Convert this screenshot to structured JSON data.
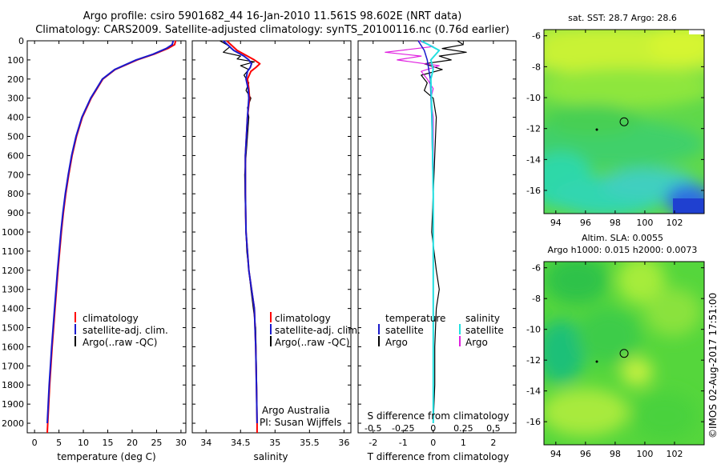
{
  "header": {
    "line1": "Argo profile: csiro 5901682_44 16-Jan-2010 11.561S 98.602E (NRT data)",
    "line2": "Climatology: CARS2009. Satellite-adjusted climatology: synTS_20100116.nc (0.76d earlier)"
  },
  "side_label": "©IMOS 02-Aug-2017 17:51:00",
  "colors": {
    "climatology": "#ff0000",
    "satellite": "#1a1acc",
    "argo": "#000000",
    "sat_salinity": "#22e0e0",
    "argo_salinity": "#e020e0"
  },
  "chart_data": [
    {
      "type": "line",
      "name": "temperature-panel",
      "xlabel": "temperature (deg C)",
      "ylabel": "",
      "xlim": [
        -1.5,
        31
      ],
      "ylim": [
        2050,
        0
      ],
      "xticks": [
        "0",
        "5",
        "10",
        "15",
        "20",
        "25",
        "30"
      ],
      "yticks": [
        "0",
        "100",
        "200",
        "300",
        "400",
        "500",
        "600",
        "700",
        "800",
        "900",
        "1000",
        "1100",
        "1200",
        "1300",
        "1400",
        "1500",
        "1600",
        "1700",
        "1800",
        "1900",
        "2000"
      ],
      "legend": [
        "climatology",
        "satellite-adj. clim.",
        "Argo(..raw -QC)"
      ],
      "series": [
        {
          "name": "climatology",
          "depth": [
            0,
            20,
            40,
            70,
            100,
            150,
            200,
            250,
            300,
            400,
            500,
            600,
            700,
            800,
            900,
            1000,
            1200,
            1400,
            1600,
            1800,
            2000,
            2050
          ],
          "values": [
            28.9,
            28.7,
            27.3,
            24.5,
            21.0,
            16.5,
            14.0,
            12.8,
            11.6,
            9.8,
            8.6,
            7.7,
            7.0,
            6.4,
            5.9,
            5.5,
            4.8,
            4.2,
            3.6,
            3.1,
            2.7,
            2.6
          ]
        },
        {
          "name": "satellite-adj. clim.",
          "depth": [
            0,
            20,
            40,
            70,
            100,
            150,
            200,
            250,
            300,
            400,
            500,
            600,
            700,
            800,
            900,
            1000,
            1200,
            1400,
            1600,
            1800,
            2000
          ],
          "values": [
            28.4,
            28.2,
            27.0,
            24.3,
            20.8,
            16.4,
            13.9,
            12.7,
            11.5,
            9.7,
            8.5,
            7.6,
            6.9,
            6.3,
            5.8,
            5.4,
            4.7,
            4.1,
            3.5,
            3.0,
            2.6
          ]
        }
      ]
    },
    {
      "type": "line",
      "name": "salinity-panel",
      "xlabel": "salinity",
      "xlim": [
        33.8,
        36.1
      ],
      "ylim": [
        2050,
        0
      ],
      "xticks": [
        "34",
        "34.5",
        "35",
        "35.5",
        "36"
      ],
      "legend": [
        "climatology",
        "satellite-adj. clim.",
        "Argo(..raw -QC)"
      ],
      "annotation": [
        "Argo Australia",
        "PI: Susan Wijffels"
      ],
      "series": [
        {
          "name": "climatology",
          "depth": [
            0,
            50,
            80,
            100,
            120,
            140,
            160,
            200,
            250,
            300,
            400,
            600,
            800,
            1000,
            1200,
            1300,
            1400,
            1600,
            1800,
            2000,
            2050
          ],
          "values": [
            34.3,
            34.45,
            34.6,
            34.7,
            34.78,
            34.72,
            34.65,
            34.6,
            34.62,
            34.63,
            34.6,
            34.57,
            34.57,
            34.58,
            34.62,
            34.66,
            34.7,
            34.72,
            34.73,
            34.74,
            34.74
          ]
        },
        {
          "name": "satellite-adj. clim.",
          "depth": [
            0,
            50,
            80,
            100,
            120,
            140,
            160,
            200,
            250,
            300,
            400,
            600,
            800,
            1000,
            1200,
            1300,
            1400,
            1600,
            1800,
            2000
          ],
          "values": [
            34.25,
            34.4,
            34.55,
            34.62,
            34.66,
            34.64,
            34.6,
            34.58,
            34.61,
            34.62,
            34.6,
            34.57,
            34.57,
            34.58,
            34.62,
            34.66,
            34.7,
            34.72,
            34.73,
            34.74
          ]
        },
        {
          "name": "Argo(..raw -QC)",
          "depth": [
            0,
            30,
            60,
            80,
            95,
            110,
            130,
            150,
            180,
            220,
            260,
            300,
            350,
            400,
            500,
            700,
            900,
            1100,
            1300,
            1500,
            1700,
            1900,
            2000
          ],
          "values": [
            34.2,
            34.35,
            34.25,
            34.5,
            34.45,
            34.7,
            34.5,
            34.62,
            34.55,
            34.62,
            34.58,
            34.65,
            34.6,
            34.62,
            34.6,
            34.56,
            34.57,
            34.59,
            34.65,
            34.72,
            34.73,
            34.74,
            34.74
          ]
        }
      ]
    },
    {
      "type": "line",
      "name": "difference-panel",
      "xlabel": "T difference from climatology",
      "x2label": "S difference from climatology",
      "xlim": [
        -2.5,
        2.75
      ],
      "ylim": [
        2050,
        0
      ],
      "xticks": [
        "-2",
        "-1",
        "0",
        "1",
        "2"
      ],
      "x2ticks": [
        "-0.5",
        "-0.25",
        "0",
        "0.25",
        "0.5"
      ],
      "legend_titles": [
        "temperature",
        "salinity"
      ],
      "legend": [
        "satellite",
        "Argo",
        "satellite",
        "Argo"
      ],
      "series": [
        {
          "name": "T satellite",
          "depth": [
            0,
            50,
            100,
            200,
            400,
            800,
            1200,
            1600,
            2000
          ],
          "values": [
            -0.5,
            -0.3,
            -0.2,
            -0.1,
            -0.05,
            0,
            0,
            0,
            0
          ]
        },
        {
          "name": "T Argo",
          "depth": [
            0,
            20,
            40,
            60,
            80,
            100,
            120,
            150,
            180,
            220,
            260,
            300,
            400,
            600,
            800,
            1000,
            1200,
            1300,
            1400,
            1600,
            1800,
            2000
          ],
          "values": [
            0.8,
            1.0,
            0.3,
            1.1,
            0.2,
            0.6,
            -0.3,
            0.3,
            -0.4,
            -0.2,
            -0.3,
            0,
            0.1,
            0.05,
            0,
            -0.05,
            0.1,
            0.2,
            0.1,
            0.05,
            0.05,
            0
          ]
        },
        {
          "name": "S satellite",
          "depth": [
            0,
            50,
            100,
            150,
            200,
            400,
            800,
            1200,
            1600,
            2000
          ],
          "values": [
            -0.1,
            0.05,
            -0.02,
            0,
            -0.02,
            -0.01,
            0,
            0,
            0,
            0
          ]
        },
        {
          "name": "S Argo",
          "depth": [
            0,
            30,
            60,
            80,
            100,
            130,
            160,
            200,
            250,
            300,
            400,
            800,
            1200,
            1600,
            2000
          ],
          "values": [
            -0.12,
            0,
            -0.4,
            -0.1,
            -0.3,
            0.05,
            -0.1,
            -0.05,
            0,
            -0.02,
            0,
            0,
            0,
            0,
            0
          ]
        }
      ]
    },
    {
      "type": "heatmap",
      "name": "sst-map",
      "title": "sat. SST: 28.7 Argo: 28.6",
      "xticks": [
        "94",
        "96",
        "98",
        "100",
        "102"
      ],
      "yticks": [
        "-6",
        "-8",
        "-10",
        "-12",
        "-14",
        "-16"
      ],
      "xlim": [
        93.2,
        104.0
      ],
      "ylim": [
        -17.5,
        -5.6
      ],
      "argo_position": [
        98.602,
        -11.561
      ]
    },
    {
      "type": "heatmap",
      "name": "sla-map",
      "title": "Altim. SLA: 0.0055",
      "subtitle": "Argo h1000: 0.015 h2000: 0.0073",
      "xticks": [
        "94",
        "96",
        "98",
        "100",
        "102"
      ],
      "yticks": [
        "-6",
        "-8",
        "-10",
        "-12",
        "-14",
        "-16"
      ],
      "xlim": [
        93.2,
        104.0
      ],
      "ylim": [
        -17.5,
        -5.6
      ],
      "argo_position": [
        98.602,
        -11.561
      ]
    }
  ]
}
